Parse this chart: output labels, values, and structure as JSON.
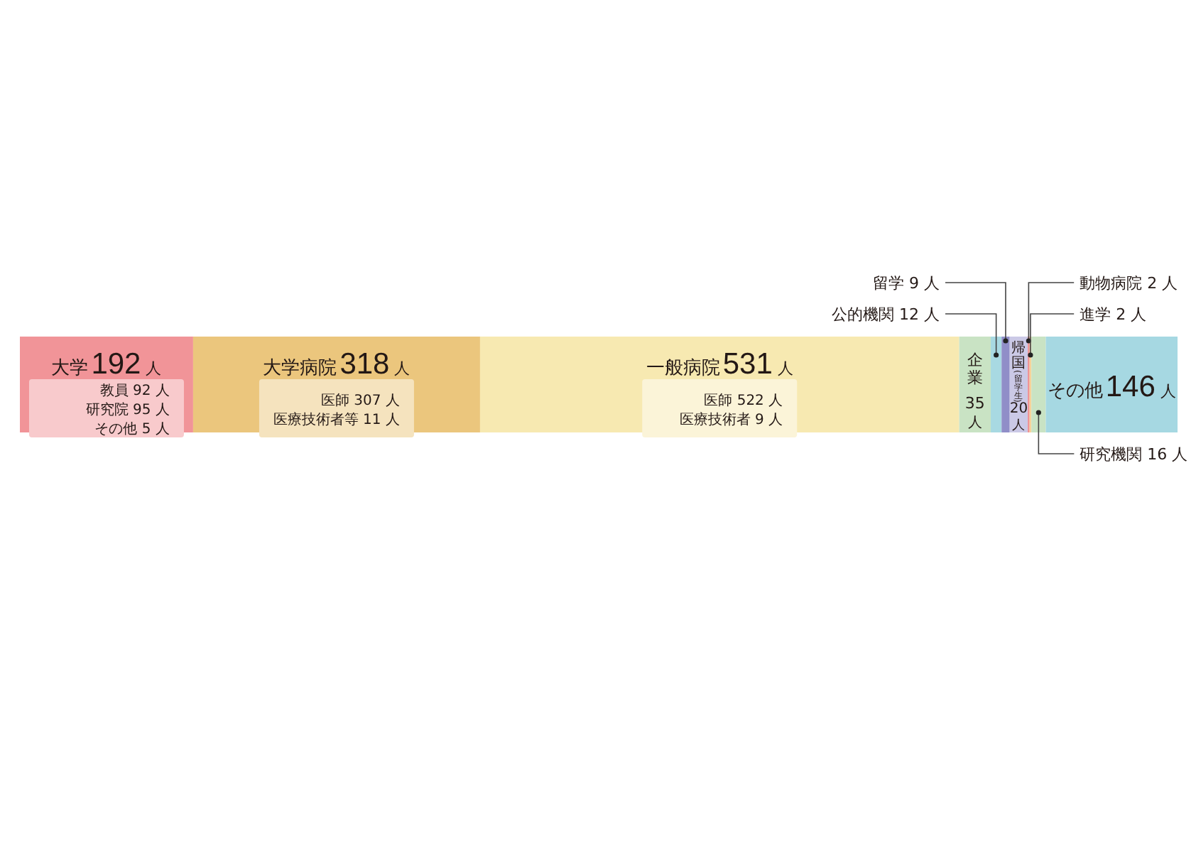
{
  "chart_data": {
    "type": "bar",
    "orientation": "horizontal",
    "stacked": true,
    "categories": [
      null
    ],
    "tick_labels": false,
    "legend": false,
    "grid": false,
    "series": [
      {
        "name": "大学",
        "color": "#f19498",
        "values": [
          192
        ],
        "value_labels": [
          "192 人"
        ]
      },
      {
        "name": "大学病院",
        "color": "#ebc67d",
        "values": [
          318
        ],
        "value_labels": [
          "318 人"
        ]
      },
      {
        "name": "一般病院",
        "color": "#f7e9b1",
        "values": [
          531
        ],
        "value_labels": [
          "531 人"
        ]
      },
      {
        "name": "企業",
        "color": "#c9e3c4",
        "values": [
          35
        ],
        "value_labels": [
          "35 人"
        ]
      },
      {
        "name": "公的機関",
        "color": "#a8d9e2",
        "values": [
          12
        ],
        "value_labels": [
          "12 人"
        ]
      },
      {
        "name": "留学",
        "color": "#908ec8",
        "values": [
          9
        ],
        "value_labels": [
          "9 人"
        ]
      },
      {
        "name": "帰国(留学生)",
        "color": "#cbc9e6",
        "values": [
          20
        ],
        "value_labels": [
          "20 人"
        ]
      },
      {
        "name": "動物病院",
        "color": "#ee8f91",
        "values": [
          2
        ],
        "value_labels": [
          "2 人"
        ]
      },
      {
        "name": "進学",
        "color": "#f6d29a",
        "values": [
          2
        ],
        "value_labels": [
          "2 人"
        ]
      },
      {
        "name": "研究機関",
        "color": "#c9e3c4",
        "values": [
          16
        ],
        "value_labels": [
          "16 人"
        ]
      },
      {
        "name": "その他",
        "color": "#a6d8e2",
        "values": [
          146
        ],
        "value_labels": [
          "146 人"
        ]
      }
    ],
    "annotations": [
      "教員 92 人研究院 95 人その他 5 人",
      "医師 307 人医療技術者等 11 人",
      "医師 522 人医療技術者 9 人"
    ]
  }
}
